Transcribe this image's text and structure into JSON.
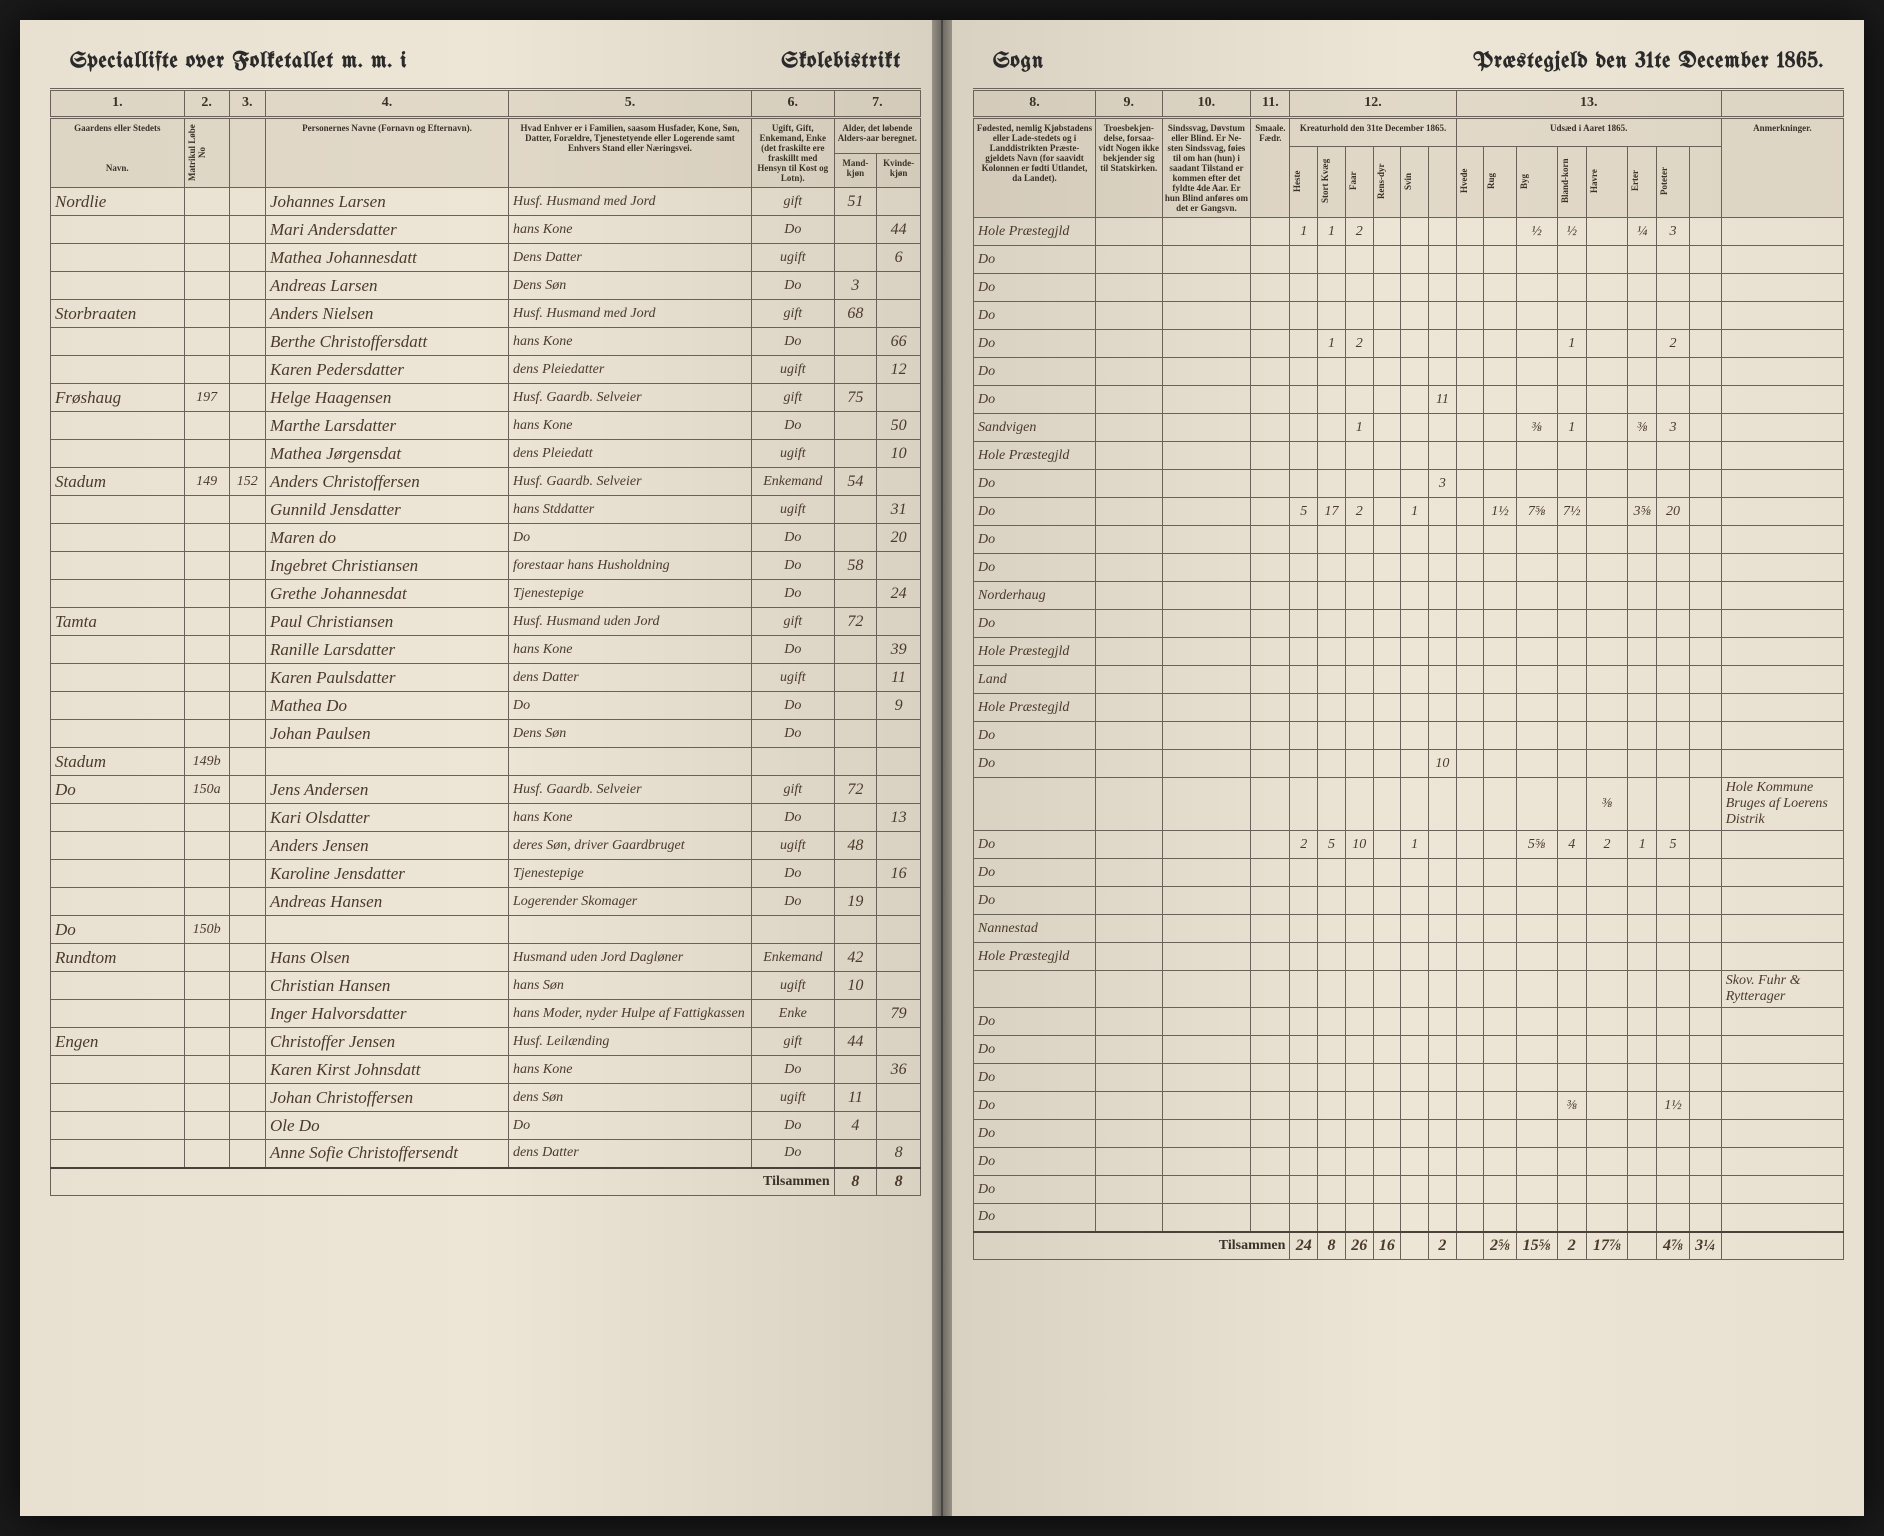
{
  "header": {
    "left1": "Speciallifte over Folketallet m. m. i",
    "left2": "Skolebistrikt",
    "right1": "Sogn",
    "right2": "Præstegjeld den 31te December 1865."
  },
  "columns_left": {
    "c1": "1.",
    "c2": "2.",
    "c3": "3.",
    "c4": "4.",
    "c5": "5.",
    "c6": "6.",
    "c7": "7.",
    "h1": "Gaardens eller Stedets",
    "h1b": "Navn.",
    "h2a": "Matrikul Løbe No",
    "h4": "Personernes Navne (Fornavn og Efternavn).",
    "h5": "Hvad Enhver er i Familien, saasom Husfader, Kone, Søn, Datter, Forældre, Tjenestetyende eller Logerende samt Enhvers Stand eller Næringsvei.",
    "h6": "Ugift, Gift, Enkemand, Enke (det fraskilte ere fraskillt med Hensyn til Kost og Lotn).",
    "h7": "Alder, det løbende Alders-aar beregnet.",
    "h7a": "Mand-kjøn",
    "h7b": "Kvinde-kjøn"
  },
  "columns_right": {
    "c8": "8.",
    "c9": "9.",
    "c10": "10.",
    "c11": "11.",
    "c12": "12.",
    "c13": "13.",
    "h8": "Fødested, nemlig Kjøbstadens eller Lade-stedets og i Landdistrikten Præste-gjeldets Navn (for saavidt Kolonnen er fødti Utlandet, da Landet).",
    "h9": "Troesbekjen-delse, forsaa-vidt Nogen ikke bekjender sig til Statskirken.",
    "h10": "Sindssvag, Døvstum eller Blind. Er Ne-sten Sindssvag, føies til om han (hun) i saadant Tilstand er kommen efter det fyldte 4de Aar. Er hun Blind anføres om det er Gangsvn.",
    "h11": "Smaale. Fædr.",
    "h12": "Kreaturhold den 31te December 1865.",
    "h12_sub": [
      "Heste",
      "Stort Kvæg",
      "Faar",
      "Rens-dyr",
      "Svin"
    ],
    "h13": "Udsæd i Aaret 1865.",
    "h13_sub": [
      "Hvede",
      "Rug",
      "Byg",
      "Bland-korn",
      "Havre",
      "Erter",
      "Poteter"
    ],
    "h14": "Anmerkninger."
  },
  "rows": [
    {
      "farm": "Nordlie",
      "m": "",
      "l": "",
      "h": "1",
      "name": "Johannes Larsen",
      "rel": "Husf. Husmand med Jord",
      "stat": "gift",
      "ageM": "51",
      "ageF": "",
      "birth": "Hole Præstegjld",
      "c12": [
        "1",
        "1",
        "2",
        "",
        "",
        ""
      ],
      "c13": [
        "",
        "",
        "½",
        "½",
        "",
        "¼",
        "3"
      ],
      "note": ""
    },
    {
      "farm": "",
      "m": "",
      "l": "",
      "h": "",
      "name": "Mari Andersdatter",
      "rel": "hans Kone",
      "stat": "Do",
      "ageM": "",
      "ageF": "44",
      "birth": "Do",
      "c12": [
        "",
        "",
        "",
        "",
        "",
        ""
      ],
      "c13": [
        "",
        "",
        "",
        "",
        "",
        "",
        ""
      ],
      "note": ""
    },
    {
      "farm": "",
      "m": "",
      "l": "",
      "h": "",
      "name": "Mathea Johannesdatt",
      "rel": "Dens Datter",
      "stat": "ugift",
      "ageM": "",
      "ageF": "6",
      "birth": "Do",
      "c12": [
        "",
        "",
        "",
        "",
        "",
        ""
      ],
      "c13": [
        "",
        "",
        "",
        "",
        "",
        "",
        ""
      ],
      "note": ""
    },
    {
      "farm": "",
      "m": "",
      "l": "",
      "h": "",
      "name": "Andreas Larsen",
      "rel": "Dens Søn",
      "stat": "Do",
      "ageM": "3",
      "ageF": "",
      "birth": "Do",
      "c12": [
        "",
        "",
        "",
        "",
        "",
        ""
      ],
      "c13": [
        "",
        "",
        "",
        "",
        "",
        "",
        ""
      ],
      "note": ""
    },
    {
      "farm": "Storbraaten",
      "m": "",
      "l": "",
      "h": "1",
      "name": "Anders Nielsen",
      "rel": "Husf. Husmand med Jord",
      "stat": "gift",
      "ageM": "68",
      "ageF": "",
      "birth": "Do",
      "c12": [
        "",
        "1",
        "2",
        "",
        "",
        ""
      ],
      "c13": [
        "",
        "",
        "",
        "1",
        "",
        "",
        "2"
      ],
      "note": ""
    },
    {
      "farm": "",
      "m": "",
      "l": "",
      "h": "",
      "name": "Berthe Christoffersdatt",
      "rel": "hans Kone",
      "stat": "Do",
      "ageM": "",
      "ageF": "66",
      "birth": "Do",
      "c12": [
        "",
        "",
        "",
        "",
        "",
        ""
      ],
      "c13": [
        "",
        "",
        "",
        "",
        "",
        "",
        ""
      ],
      "note": ""
    },
    {
      "farm": "",
      "m": "",
      "l": "",
      "h": "",
      "name": "Karen Pedersdatter",
      "rel": "dens Pleiedatter",
      "stat": "ugift",
      "ageM": "",
      "ageF": "12",
      "birth": "Do",
      "c12": [
        "",
        "",
        "",
        "",
        "",
        "11"
      ],
      "c13": [
        "",
        "",
        "",
        "",
        "",
        "",
        ""
      ],
      "note": ""
    },
    {
      "farm": "Frøshaug",
      "m": "197",
      "l": "",
      "h": "1",
      "name": "Helge Haagensen",
      "rel": "Husf. Gaardb. Selveier",
      "stat": "gift",
      "ageM": "75",
      "ageF": "",
      "birth": "Sandvigen",
      "c12": [
        "",
        "",
        "1",
        "",
        "",
        ""
      ],
      "c13": [
        "",
        "",
        "⅜",
        "1",
        "",
        "⅜",
        "3"
      ],
      "note": ""
    },
    {
      "farm": "",
      "m": "",
      "l": "",
      "h": "",
      "name": "Marthe Larsdatter",
      "rel": "hans Kone",
      "stat": "Do",
      "ageM": "",
      "ageF": "50",
      "birth": "Hole Præstegjld",
      "c12": [
        "",
        "",
        "",
        "",
        "",
        ""
      ],
      "c13": [
        "",
        "",
        "",
        "",
        "",
        "",
        ""
      ],
      "note": ""
    },
    {
      "farm": "",
      "m": "",
      "l": "",
      "h": "",
      "name": "Mathea Jørgensdat",
      "rel": "dens Pleiedatt",
      "stat": "ugift",
      "ageM": "",
      "ageF": "10",
      "birth": "Do",
      "c12": [
        "",
        "",
        "",
        "",
        "",
        "3"
      ],
      "c13": [
        "",
        "",
        "",
        "",
        "",
        "",
        ""
      ],
      "note": ""
    },
    {
      "farm": "Stadum",
      "m": "149",
      "l": "152",
      "h": "1",
      "name": "Anders Christoffersen",
      "rel": "Husf. Gaardb. Selveier",
      "stat": "Enkemand",
      "ageM": "54",
      "ageF": "",
      "birth": "Do",
      "c12": [
        "5",
        "17",
        "2",
        "",
        "1",
        ""
      ],
      "c13": [
        "",
        "1½",
        "7⅝",
        "7½",
        "",
        "3⅝",
        "20"
      ],
      "note": ""
    },
    {
      "farm": "",
      "m": "",
      "l": "",
      "h": "",
      "name": "Gunnild Jensdatter",
      "rel": "hans Stddatter",
      "stat": "ugift",
      "ageM": "",
      "ageF": "31",
      "birth": "Do",
      "c12": [
        "",
        "",
        "",
        "",
        "",
        ""
      ],
      "c13": [
        "",
        "",
        "",
        "",
        "",
        "",
        ""
      ],
      "note": ""
    },
    {
      "farm": "",
      "m": "",
      "l": "",
      "h": "",
      "name": "Maren   do",
      "rel": "Do",
      "stat": "Do",
      "ageM": "",
      "ageF": "20",
      "birth": "Do",
      "c12": [
        "",
        "",
        "",
        "",
        "",
        ""
      ],
      "c13": [
        "",
        "",
        "",
        "",
        "",
        "",
        ""
      ],
      "note": ""
    },
    {
      "farm": "",
      "m": "",
      "l": "",
      "h": "",
      "name": "Ingebret Christiansen",
      "rel": "forestaar hans Husholdning",
      "stat": "Do",
      "ageM": "58",
      "ageF": "",
      "birth": "Norderhaug",
      "c12": [
        "",
        "",
        "",
        "",
        "",
        ""
      ],
      "c13": [
        "",
        "",
        "",
        "",
        "",
        "",
        ""
      ],
      "note": ""
    },
    {
      "farm": "",
      "m": "",
      "l": "",
      "h": "",
      "name": "Grethe Johannesdat",
      "rel": "Tjenestepige",
      "stat": "Do",
      "ageM": "",
      "ageF": "24",
      "birth": "Do",
      "c12": [
        "",
        "",
        "",
        "",
        "",
        ""
      ],
      "c13": [
        "",
        "",
        "",
        "",
        "",
        "",
        ""
      ],
      "note": ""
    },
    {
      "farm": "Tamta",
      "m": "",
      "l": "",
      "h": "1",
      "name": "Paul Christiansen",
      "rel": "Husf. Husmand uden Jord",
      "stat": "gift",
      "ageM": "72",
      "ageF": "",
      "birth": "Hole Præstegjld",
      "c12": [
        "",
        "",
        "",
        "",
        "",
        ""
      ],
      "c13": [
        "",
        "",
        "",
        "",
        "",
        "",
        ""
      ],
      "note": ""
    },
    {
      "farm": "",
      "m": "",
      "l": "",
      "h": "",
      "name": "Ranille Larsdatter",
      "rel": "hans Kone",
      "stat": "Do",
      "ageM": "",
      "ageF": "39",
      "birth": "Land",
      "c12": [
        "",
        "",
        "",
        "",
        "",
        ""
      ],
      "c13": [
        "",
        "",
        "",
        "",
        "",
        "",
        ""
      ],
      "note": ""
    },
    {
      "farm": "",
      "m": "",
      "l": "",
      "h": "",
      "name": "Karen Paulsdatter",
      "rel": "dens Datter",
      "stat": "ugift",
      "ageM": "",
      "ageF": "11",
      "birth": "Hole Præstegjld",
      "c12": [
        "",
        "",
        "",
        "",
        "",
        ""
      ],
      "c13": [
        "",
        "",
        "",
        "",
        "",
        "",
        ""
      ],
      "note": ""
    },
    {
      "farm": "",
      "m": "",
      "l": "",
      "h": "",
      "name": "Mathea  Do",
      "rel": "Do",
      "stat": "Do",
      "ageM": "",
      "ageF": "9",
      "birth": "Do",
      "c12": [
        "",
        "",
        "",
        "",
        "",
        ""
      ],
      "c13": [
        "",
        "",
        "",
        "",
        "",
        "",
        ""
      ],
      "note": ""
    },
    {
      "farm": "",
      "m": "",
      "l": "",
      "h": "",
      "name": "Johan Paulsen",
      "rel": "Dens Søn",
      "stat": "Do",
      "ageM": "",
      "ageF": "",
      "birth": "Do",
      "c12": [
        "",
        "",
        "",
        "",
        "",
        "10"
      ],
      "c13": [
        "",
        "",
        "",
        "",
        "",
        "",
        ""
      ],
      "note": ""
    },
    {
      "farm": "Stadum",
      "m": "149b",
      "l": "",
      "h": "",
      "name": "",
      "rel": "",
      "stat": "",
      "ageM": "",
      "ageF": "",
      "birth": "",
      "c12": [
        "",
        "",
        "",
        "",
        "",
        ""
      ],
      "c13": [
        "",
        "",
        "",
        "",
        "⅜",
        "",
        ""
      ],
      "note": "Hole Kommune Bruges af Loerens Distrik"
    },
    {
      "farm": "Do",
      "m": "150a",
      "l": "",
      "h": "1",
      "name": "Jens Andersen",
      "rel": "Husf. Gaardb. Selveier",
      "stat": "gift",
      "ageM": "72",
      "ageF": "",
      "birth": "Do",
      "c12": [
        "2",
        "5",
        "10",
        "",
        "1",
        ""
      ],
      "c13": [
        "",
        "",
        "5⅝",
        "4",
        "2",
        "1",
        "5"
      ],
      "note": ""
    },
    {
      "farm": "",
      "m": "",
      "l": "",
      "h": "",
      "name": "Kari Olsdatter",
      "rel": "hans Kone",
      "stat": "Do",
      "ageM": "",
      "ageF": "13",
      "birth": "Do",
      "c12": [
        "",
        "",
        "",
        "",
        "",
        ""
      ],
      "c13": [
        "",
        "",
        "",
        "",
        "",
        "",
        ""
      ],
      "note": ""
    },
    {
      "farm": "",
      "m": "",
      "l": "",
      "h": "",
      "name": "Anders Jensen",
      "rel": "deres Søn, driver Gaardbruget",
      "stat": "ugift",
      "ageM": "48",
      "ageF": "",
      "birth": "Do",
      "c12": [
        "",
        "",
        "",
        "",
        "",
        ""
      ],
      "c13": [
        "",
        "",
        "",
        "",
        "",
        "",
        ""
      ],
      "note": ""
    },
    {
      "farm": "",
      "m": "",
      "l": "",
      "h": "",
      "name": "Karoline Jensdatter",
      "rel": "Tjenestepige",
      "stat": "Do",
      "ageM": "",
      "ageF": "16",
      "birth": "Nannestad",
      "c12": [
        "",
        "",
        "",
        "",
        "",
        ""
      ],
      "c13": [
        "",
        "",
        "",
        "",
        "",
        "",
        ""
      ],
      "note": ""
    },
    {
      "farm": "",
      "m": "",
      "l": "",
      "h": "",
      "name": "Andreas Hansen",
      "rel": "Logerender Skomager",
      "stat": "Do",
      "ageM": "19",
      "ageF": "",
      "birth": "Hole Præstegjld",
      "c12": [
        "",
        "",
        "",
        "",
        "",
        ""
      ],
      "c13": [
        "",
        "",
        "",
        "",
        "",
        "",
        ""
      ],
      "note": ""
    },
    {
      "farm": "Do",
      "m": "150b",
      "l": "",
      "h": "",
      "name": "",
      "rel": "",
      "stat": "",
      "ageM": "",
      "ageF": "",
      "birth": "",
      "c12": [
        "",
        "",
        "",
        "",
        "",
        ""
      ],
      "c13": [
        "",
        "",
        "",
        "",
        "",
        "",
        ""
      ],
      "note": "Skov. Fuhr & Rytterager"
    },
    {
      "farm": "Rundtom",
      "m": "",
      "l": "",
      "h": "1",
      "name": "Hans Olsen",
      "rel": "Husmand uden Jord Dagløner",
      "stat": "Enkemand",
      "ageM": "42",
      "ageF": "",
      "birth": "Do",
      "c12": [
        "",
        "",
        "",
        "",
        "",
        ""
      ],
      "c13": [
        "",
        "",
        "",
        "",
        "",
        "",
        ""
      ],
      "note": ""
    },
    {
      "farm": "",
      "m": "",
      "l": "",
      "h": "",
      "name": "Christian Hansen",
      "rel": "hans Søn",
      "stat": "ugift",
      "ageM": "10",
      "ageF": "",
      "birth": "Do",
      "c12": [
        "",
        "",
        "",
        "",
        "",
        ""
      ],
      "c13": [
        "",
        "",
        "",
        "",
        "",
        "",
        ""
      ],
      "note": ""
    },
    {
      "farm": "",
      "m": "",
      "l": "",
      "h": "",
      "name": "Inger Halvorsdatter",
      "rel": "hans Moder, nyder Hulpe af Fattigkassen",
      "stat": "Enke",
      "ageM": "",
      "ageF": "79",
      "birth": "Do",
      "c12": [
        "",
        "",
        "",
        "",
        "",
        ""
      ],
      "c13": [
        "",
        "",
        "",
        "",
        "",
        "",
        ""
      ],
      "note": ""
    },
    {
      "farm": "Engen",
      "m": "",
      "l": "",
      "h": "1",
      "name": "Christoffer Jensen",
      "rel": "Husf. Leilænding",
      "stat": "gift",
      "ageM": "44",
      "ageF": "",
      "birth": "Do",
      "c12": [
        "",
        "",
        "",
        "",
        "",
        ""
      ],
      "c13": [
        "",
        "",
        "",
        "⅜",
        "",
        "",
        "1½"
      ],
      "note": ""
    },
    {
      "farm": "",
      "m": "",
      "l": "",
      "h": "",
      "name": "Karen Kirst Johnsdatt",
      "rel": "hans Kone",
      "stat": "Do",
      "ageM": "",
      "ageF": "36",
      "birth": "Do",
      "c12": [
        "",
        "",
        "",
        "",
        "",
        ""
      ],
      "c13": [
        "",
        "",
        "",
        "",
        "",
        "",
        ""
      ],
      "note": ""
    },
    {
      "farm": "",
      "m": "",
      "l": "",
      "h": "",
      "name": "Johan Christoffersen",
      "rel": "dens Søn",
      "stat": "ugift",
      "ageM": "11",
      "ageF": "",
      "birth": "Do",
      "c12": [
        "",
        "",
        "",
        "",
        "",
        ""
      ],
      "c13": [
        "",
        "",
        "",
        "",
        "",
        "",
        ""
      ],
      "note": ""
    },
    {
      "farm": "",
      "m": "",
      "l": "",
      "h": "",
      "name": "Ole   Do",
      "rel": "Do",
      "stat": "Do",
      "ageM": "4",
      "ageF": "",
      "birth": "Do",
      "c12": [
        "",
        "",
        "",
        "",
        "",
        ""
      ],
      "c13": [
        "",
        "",
        "",
        "",
        "",
        "",
        ""
      ],
      "note": ""
    },
    {
      "farm": "",
      "m": "",
      "l": "",
      "h": "",
      "name": "Anne Sofie Christoffersendt",
      "rel": "dens Datter",
      "stat": "Do",
      "ageM": "",
      "ageF": "8",
      "birth": "Do",
      "c12": [
        "",
        "",
        "",
        "",
        "",
        ""
      ],
      "c13": [
        "",
        "",
        "",
        "",
        "",
        "",
        ""
      ],
      "note": ""
    }
  ],
  "sum": {
    "label": "Tilsammen",
    "left": [
      "8",
      "8"
    ],
    "c12": [
      "24",
      "8",
      "26",
      "16",
      "",
      "2"
    ],
    "c13": [
      "",
      "2⅝",
      "15⅝",
      "2",
      "17⅞",
      "",
      "4⅞",
      "3¼"
    ]
  }
}
